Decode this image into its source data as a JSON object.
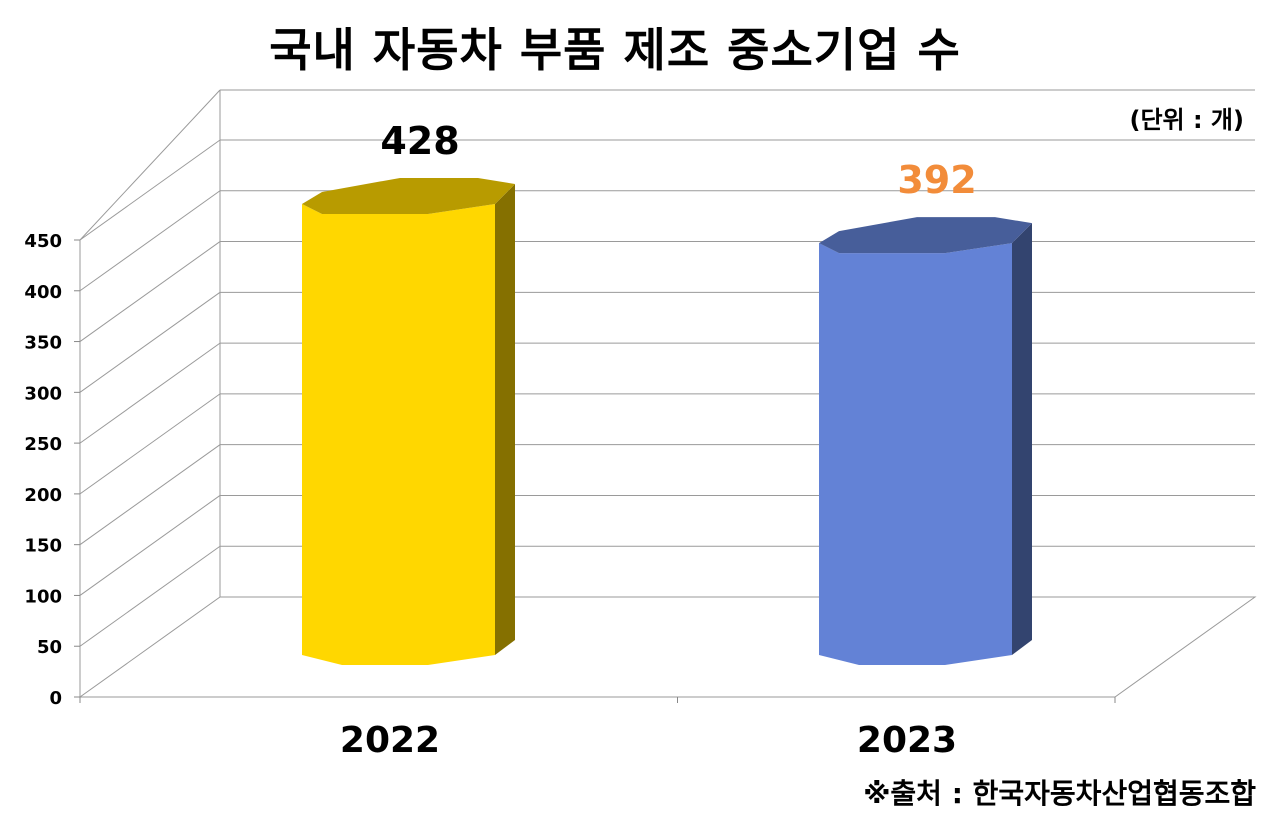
{
  "title": "국내 자동차 부품 제조 중소기업 수",
  "unit_note": "(단위 : 개)",
  "source_note": "※출처 : 한국자동차산업협동조합",
  "chart_data": {
    "type": "bar",
    "title": "국내 자동차 부품 제조 중소기업 수",
    "categories": [
      "2022",
      "2023"
    ],
    "values": [
      428,
      392
    ],
    "value_labels": [
      "428",
      "392"
    ],
    "ylim": [
      0,
      450
    ],
    "yticks": [
      "0",
      "50",
      "100",
      "150",
      "200",
      "250",
      "300",
      "350",
      "400",
      "450"
    ],
    "grid": true,
    "legend": "none",
    "bar_colors": [
      "#FFD700",
      "#6382D6"
    ],
    "label_colors": [
      "#000000",
      "#F28C3A"
    ]
  }
}
